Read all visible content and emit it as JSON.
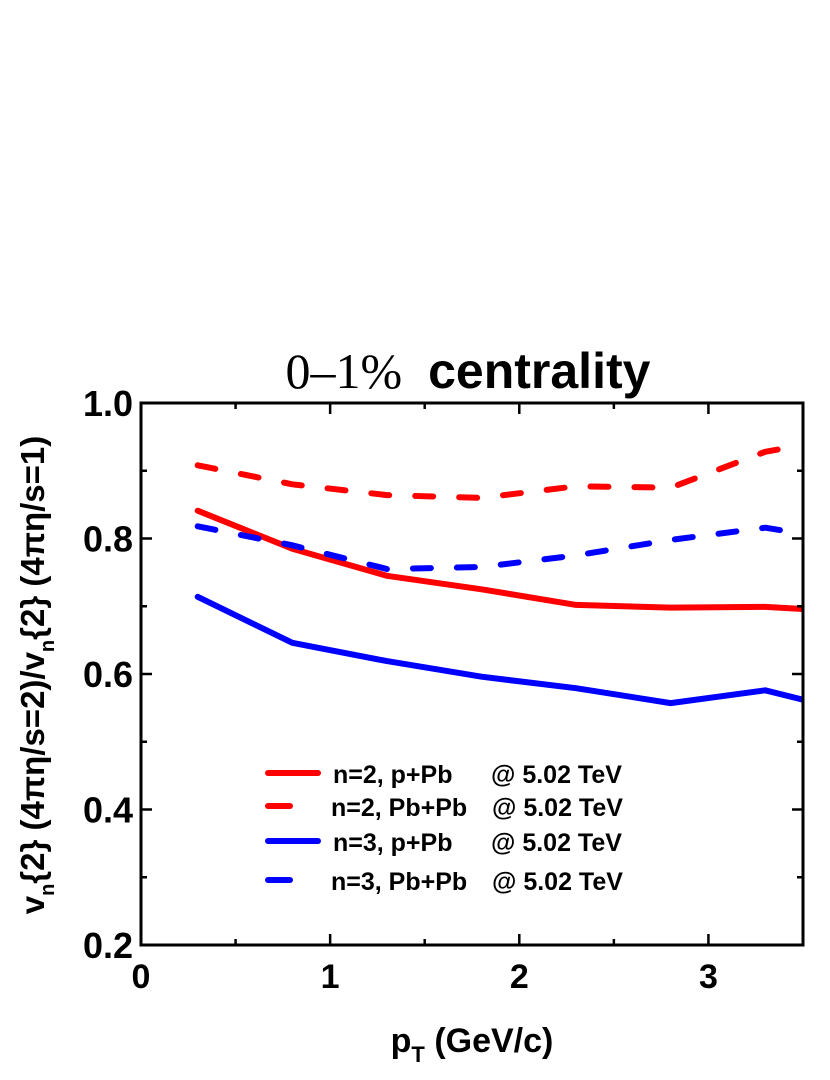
{
  "chart_data": {
    "type": "line",
    "title": "0–1% centrality",
    "title_parts": {
      "numeric": "0–1%",
      "word": "centrality"
    },
    "xlabel": "p_T (GeV/c)",
    "xlabel_parts": {
      "main": "p",
      "sub": "T",
      "rest": " (GeV/c)"
    },
    "ylabel": "v_n{2} (4πη/s=2)/v_n{2} (4πη/s=1)",
    "ylabel_parts": {
      "a": "v",
      "a_sub": "n",
      "b": "{2} (4πη/s=2)/v",
      "b_sub": "n",
      "c": "{2} (4πη/s=1)"
    },
    "xlim": [
      0,
      3.5
    ],
    "ylim": [
      0.2,
      1.0
    ],
    "xticks": [
      0,
      1,
      2,
      3
    ],
    "xtick_labels": [
      "0",
      "1",
      "2",
      "3"
    ],
    "xminor": [
      0.5,
      1.5,
      2.5
    ],
    "yticks": [
      0.2,
      0.4,
      0.6,
      0.8,
      1.0
    ],
    "ytick_labels": [
      "0.2",
      "0.4",
      "0.6",
      "0.8",
      "1.0"
    ],
    "yminor": [
      0.3,
      0.5,
      0.7,
      0.9
    ],
    "grid": false,
    "ticks_direction": "in",
    "legend_position": "lower center (inside)",
    "x": [
      0.3,
      0.8,
      1.3,
      1.8,
      2.3,
      2.8,
      3.3,
      3.5
    ],
    "series": [
      {
        "name": "n=2, p+Pb   @ 5.02 TeV",
        "label_left": "n=2, p+Pb",
        "label_right": "@ 5.02 TeV",
        "color": "#ff0000",
        "style": "solid",
        "values": [
          0.841,
          0.785,
          0.745,
          0.725,
          0.702,
          0.698,
          0.699,
          0.696
        ]
      },
      {
        "name": "n=2, Pb+Pb @ 5.02 TeV",
        "label_left": "n=2, Pb+Pb",
        "label_right": "@ 5.02 TeV",
        "color": "#ff0000",
        "style": "dashed",
        "values": [
          0.908,
          0.88,
          0.864,
          0.86,
          0.877,
          0.875,
          0.928,
          0.938
        ]
      },
      {
        "name": "n=3, p+Pb   @ 5.02 TeV",
        "label_left": "n=3, p+Pb",
        "label_right": "@ 5.02 TeV",
        "color": "#0000ff",
        "style": "solid",
        "values": [
          0.714,
          0.646,
          0.619,
          0.596,
          0.579,
          0.557,
          0.576,
          0.562
        ]
      },
      {
        "name": "n=3, Pb+Pb @ 5.02 TeV",
        "label_left": "n=3, Pb+Pb",
        "label_right": "@ 5.02 TeV",
        "color": "#0000ff",
        "style": "dashed",
        "values": [
          0.818,
          0.79,
          0.755,
          0.758,
          0.775,
          0.798,
          0.816,
          0.807
        ]
      }
    ]
  }
}
